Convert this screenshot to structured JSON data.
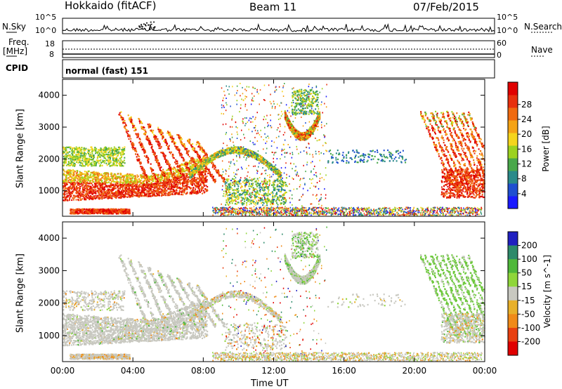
{
  "header": {
    "station": "Hokkaido (fitACF)",
    "beam": "Beam 11",
    "date": "07/Feb/2015"
  },
  "side_labels": {
    "n_sky": "N.Sky",
    "freq_top": "Freq.",
    "freq_unit": "[MHz]",
    "cpid": "CPID",
    "n_search": "N.Search",
    "nave": "Nave"
  },
  "cpid_text": "normal (fast) 151",
  "noise_axis": {
    "left_top": "10^5",
    "left_bottom": "10^0",
    "right_top": "10^5",
    "right_bottom": "10^0"
  },
  "freq_axis": {
    "left_top": "18",
    "left_bottom": "8",
    "right_top": "60",
    "right_bottom": "0"
  },
  "chart_data": [
    {
      "type": "heatmap",
      "title": "",
      "ylabel": "Slant Range [km]",
      "xlabel": "",
      "x_ticks": [
        "00:00",
        "04:00",
        "08:00",
        "12:00",
        "16:00",
        "20:00",
        "00:00"
      ],
      "y_ticks": [
        "1000",
        "2000",
        "3000",
        "4000"
      ],
      "ylim": [
        200,
        4500
      ],
      "colorbar": {
        "label": "Power [dB]",
        "ticks": [
          "4",
          "8",
          "12",
          "16",
          "20",
          "24",
          "28"
        ],
        "colors": [
          "#1a1aff",
          "#1f4fd0",
          "#2a8a8a",
          "#49a84a",
          "#9cd21f",
          "#f5d51c",
          "#f5a316",
          "#f06a10",
          "#e8300e",
          "#e00000"
        ]
      },
      "features": [
        {
          "name": "daytime near-range band",
          "x_start": "00:00",
          "x_end": "08:00",
          "range_km": [
            700,
            1700
          ]
        },
        {
          "name": "morning oblique streaks",
          "x_start": "03:00",
          "x_end": "09:00",
          "range_km": [
            1200,
            3800
          ]
        },
        {
          "name": "midday scatter",
          "x_start": "09:00",
          "x_end": "15:00",
          "range_km": [
            800,
            4200
          ]
        },
        {
          "name": "afternoon arc",
          "x_start": "13:00",
          "x_end": "14:30",
          "range_km": [
            2600,
            3300
          ]
        },
        {
          "name": "evening streaks",
          "x_start": "20:30",
          "x_end": "00:00",
          "range_km": [
            800,
            3600
          ]
        }
      ]
    },
    {
      "type": "heatmap",
      "title": "",
      "ylabel": "Slant Range [km]",
      "xlabel": "Time UT",
      "x_ticks": [
        "00:00",
        "04:00",
        "08:00",
        "12:00",
        "16:00",
        "20:00",
        "00:00"
      ],
      "y_ticks": [
        "1000",
        "2000",
        "3000",
        "4000"
      ],
      "ylim": [
        200,
        4500
      ],
      "colorbar": {
        "label": "Velocity [m s^-1]",
        "ticks": [
          "200",
          "100",
          "50",
          "15",
          "-15",
          "-50",
          "-100",
          "-200"
        ],
        "colors": [
          "#2020c0",
          "#2d8a6a",
          "#4fb83a",
          "#8fd63a",
          "#c8c8c0",
          "#e8b02a",
          "#f08a18",
          "#e84010",
          "#e00000"
        ]
      }
    }
  ]
}
